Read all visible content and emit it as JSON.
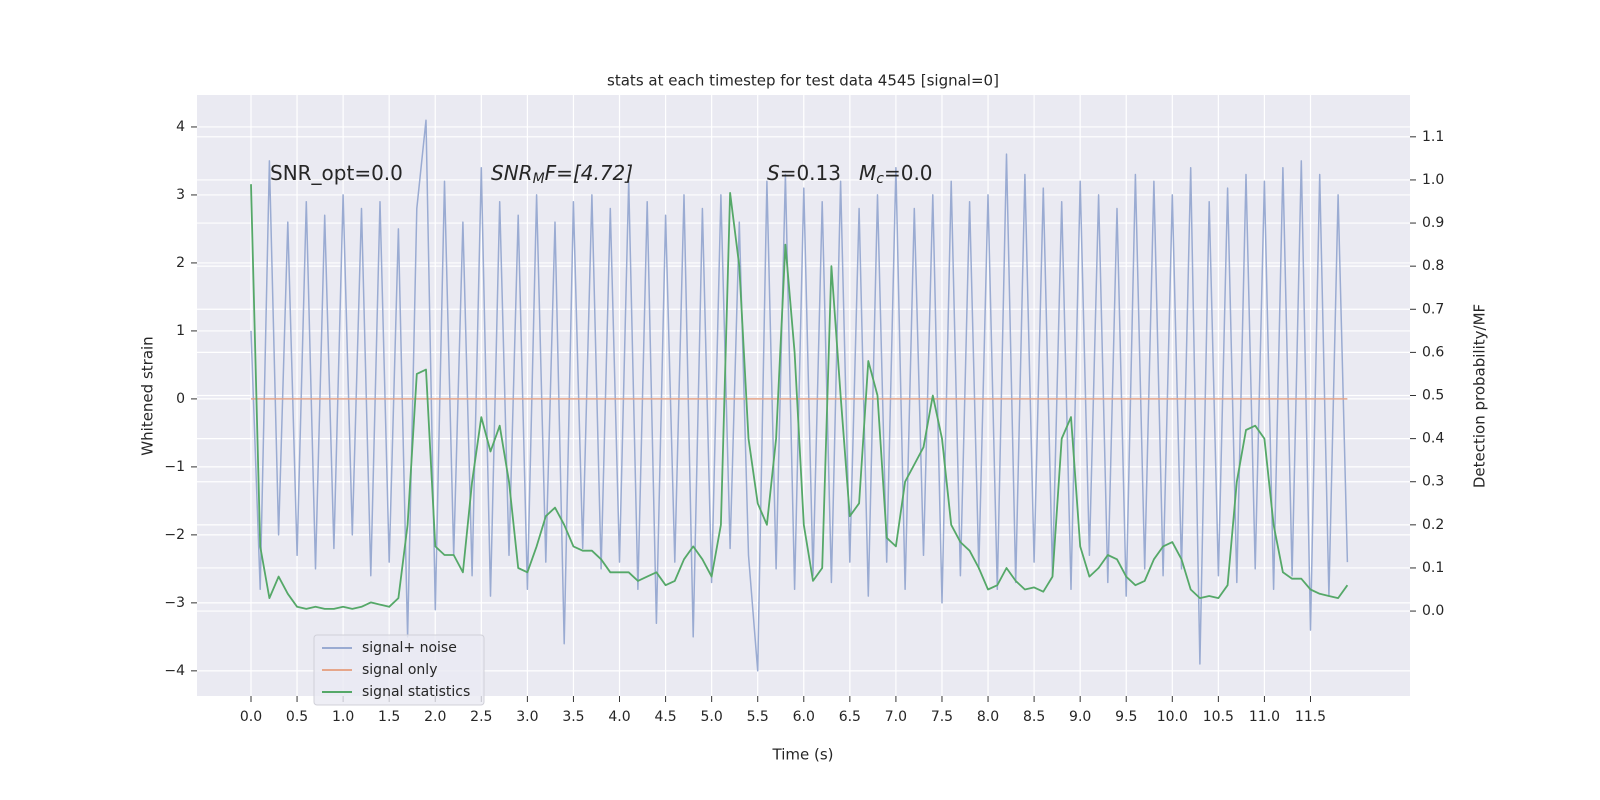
{
  "chart_data": {
    "type": "line",
    "title": "stats at each timestep for test data 4545 [signal=0]",
    "xlabel": "Time (s)",
    "ylabel": "Whitened strain",
    "y2label": "Detection probability/MF",
    "annotations": [
      [
        "SNR_opt=0.0"
      ],
      [
        "SNR",
        "M",
        "F=[4.72]"
      ],
      [
        "S",
        "=0.13"
      ],
      [
        "M",
        "c",
        "=0.0"
      ]
    ],
    "x": [
      0,
      0.1,
      0.2,
      0.3,
      0.4,
      0.5,
      0.6,
      0.7,
      0.8,
      0.9,
      1.0,
      1.1,
      1.2,
      1.3,
      1.4,
      1.5,
      1.6,
      1.7,
      1.8,
      1.9,
      2.0,
      2.1,
      2.2,
      2.3,
      2.4,
      2.5,
      2.6,
      2.7,
      2.8,
      2.9,
      3.0,
      3.1,
      3.2,
      3.3,
      3.4,
      3.5,
      3.6,
      3.7,
      3.8,
      3.9,
      4.0,
      4.1,
      4.2,
      4.3,
      4.4,
      4.5,
      4.6,
      4.7,
      4.8,
      4.9,
      5.0,
      5.1,
      5.2,
      5.3,
      5.4,
      5.5,
      5.6,
      5.7,
      5.8,
      5.9,
      6.0,
      6.1,
      6.2,
      6.3,
      6.4,
      6.5,
      6.6,
      6.7,
      6.8,
      6.9,
      7.0,
      7.1,
      7.2,
      7.3,
      7.4,
      7.5,
      7.6,
      7.7,
      7.8,
      7.9,
      8.0,
      8.1,
      8.2,
      8.3,
      8.4,
      8.5,
      8.6,
      8.7,
      8.8,
      8.9,
      9.0,
      9.1,
      9.2,
      9.3,
      9.4,
      9.5,
      9.6,
      9.7,
      9.8,
      9.9,
      10.0,
      10.1,
      10.2,
      10.3,
      10.4,
      10.5,
      10.6,
      10.7,
      10.8,
      10.9,
      11.0,
      11.1,
      11.2,
      11.3,
      11.4,
      11.5,
      11.6,
      11.7,
      11.8,
      11.9
    ],
    "series": [
      {
        "name": "signal+ noise",
        "color": "#9aabd2",
        "values": [
          1.0,
          -2.8,
          3.5,
          -2.0,
          2.6,
          -2.3,
          2.9,
          -2.5,
          2.7,
          -2.2,
          3.0,
          -2.0,
          2.8,
          -2.6,
          2.9,
          -2.4,
          2.5,
          -3.5,
          2.8,
          4.1,
          -3.1,
          3.2,
          -2.3,
          2.6,
          -2.6,
          3.4,
          -2.9,
          2.9,
          -2.3,
          2.7,
          -2.8,
          3.0,
          -2.4,
          2.6,
          -3.6,
          2.9,
          -2.2,
          3.0,
          -2.5,
          2.8,
          -2.4,
          3.2,
          -2.8,
          2.9,
          -3.3,
          2.7,
          -2.4,
          3.0,
          -3.5,
          2.8,
          -2.7,
          3.0,
          -2.2,
          2.6,
          -2.3,
          -4.0,
          3.2,
          -2.5,
          3.3,
          -2.8,
          3.1,
          -2.6,
          2.9,
          -2.7,
          3.2,
          -2.4,
          2.8,
          -2.9,
          3.0,
          -2.4,
          3.4,
          -2.8,
          2.8,
          -2.3,
          3.0,
          -3.0,
          3.2,
          -2.6,
          2.9,
          -2.5,
          3.0,
          -2.8,
          3.6,
          -2.7,
          3.3,
          -2.4,
          3.1,
          -2.6,
          2.9,
          -2.8,
          3.2,
          -2.3,
          3.0,
          -2.7,
          2.8,
          -2.9,
          3.3,
          -2.5,
          3.2,
          -2.6,
          3.0,
          -2.5,
          3.4,
          -3.9,
          2.9,
          -2.6,
          3.1,
          -2.7,
          3.3,
          -2.5,
          3.2,
          -2.8,
          3.4,
          -2.6,
          3.5,
          -3.4,
          3.3,
          -2.9,
          3.0,
          -2.4
        ]
      },
      {
        "name": "signal only",
        "color": "#e6a68a",
        "values": [
          0,
          0,
          0,
          0,
          0,
          0,
          0,
          0,
          0,
          0,
          0,
          0,
          0,
          0,
          0,
          0,
          0,
          0,
          0,
          0,
          0,
          0,
          0,
          0,
          0,
          0,
          0,
          0,
          0,
          0,
          0,
          0,
          0,
          0,
          0,
          0,
          0,
          0,
          0,
          0,
          0,
          0,
          0,
          0,
          0,
          0,
          0,
          0,
          0,
          0,
          0,
          0,
          0,
          0,
          0,
          0,
          0,
          0,
          0,
          0,
          0,
          0,
          0,
          0,
          0,
          0,
          0,
          0,
          0,
          0,
          0,
          0,
          0,
          0,
          0,
          0,
          0,
          0,
          0,
          0,
          0,
          0,
          0,
          0,
          0,
          0,
          0,
          0,
          0,
          0,
          0,
          0,
          0,
          0,
          0,
          0,
          0,
          0,
          0,
          0,
          0,
          0,
          0,
          0,
          0,
          0,
          0,
          0,
          0,
          0,
          0,
          0,
          0,
          0,
          0,
          0,
          0,
          0,
          0,
          0
        ]
      },
      {
        "name": "signal statistics",
        "color": "#55a868",
        "axis": "y2",
        "values": [
          0.99,
          0.15,
          0.03,
          0.08,
          0.04,
          0.01,
          0.005,
          0.01,
          0.005,
          0.005,
          0.01,
          0.005,
          0.01,
          0.02,
          0.015,
          0.01,
          0.03,
          0.2,
          0.55,
          0.56,
          0.15,
          0.13,
          0.13,
          0.09,
          0.3,
          0.45,
          0.37,
          0.43,
          0.3,
          0.1,
          0.09,
          0.15,
          0.22,
          0.24,
          0.2,
          0.15,
          0.14,
          0.14,
          0.12,
          0.09,
          0.09,
          0.09,
          0.07,
          0.08,
          0.09,
          0.06,
          0.07,
          0.12,
          0.15,
          0.12,
          0.08,
          0.2,
          0.97,
          0.8,
          0.4,
          0.25,
          0.2,
          0.4,
          0.85,
          0.6,
          0.2,
          0.07,
          0.1,
          0.8,
          0.5,
          0.22,
          0.25,
          0.58,
          0.5,
          0.17,
          0.15,
          0.3,
          0.34,
          0.38,
          0.5,
          0.4,
          0.2,
          0.16,
          0.14,
          0.1,
          0.05,
          0.06,
          0.1,
          0.07,
          0.05,
          0.055,
          0.045,
          0.08,
          0.4,
          0.45,
          0.15,
          0.08,
          0.1,
          0.13,
          0.12,
          0.08,
          0.06,
          0.07,
          0.12,
          0.15,
          0.16,
          0.12,
          0.05,
          0.03,
          0.035,
          0.03,
          0.06,
          0.3,
          0.42,
          0.43,
          0.4,
          0.2,
          0.09,
          0.075,
          0.075,
          0.05,
          0.04,
          0.035,
          0.03,
          0.06
        ]
      }
    ],
    "xlim": [
      -0.586,
      12.58
    ],
    "xticks": [
      {
        "value": 0,
        "label": "0.0"
      },
      0.5,
      {
        "value": 1,
        "label": "1.0"
      },
      1.5,
      {
        "value": 2,
        "label": "2.0"
      },
      2.5,
      {
        "value": 3,
        "label": "3.0"
      },
      3.5,
      {
        "value": 4,
        "label": "4.0"
      },
      4.5,
      {
        "value": 5,
        "label": "5.0"
      },
      5.5,
      {
        "value": 6,
        "label": "6.0"
      },
      6.5,
      {
        "value": 7,
        "label": "7.0"
      },
      7.5,
      {
        "value": 8,
        "label": "8.0"
      },
      8.5,
      {
        "value": 9,
        "label": "9.0"
      },
      9.5,
      {
        "value": 10,
        "label": "10.0"
      },
      10.5,
      {
        "value": 11,
        "label": "11.0"
      },
      11.5
    ],
    "ylim": [
      -4.37,
      4.47
    ],
    "yticks": [
      {
        "value": -4,
        "label": "−4"
      },
      {
        "value": -3,
        "label": "−3"
      },
      {
        "value": -2,
        "label": "−2"
      },
      {
        "value": -1,
        "label": "−1"
      },
      0,
      1,
      2,
      3,
      4
    ],
    "y2lim": [
      -0.197,
      1.197
    ],
    "y2ticks": [
      {
        "value": 0,
        "label": "0.0"
      },
      0.1,
      0.2,
      0.3,
      0.4,
      0.5,
      0.6,
      0.7,
      0.8,
      0.9,
      {
        "value": 1,
        "label": "1.0"
      },
      1.1
    ],
    "grid": true,
    "legend": "lower left"
  }
}
